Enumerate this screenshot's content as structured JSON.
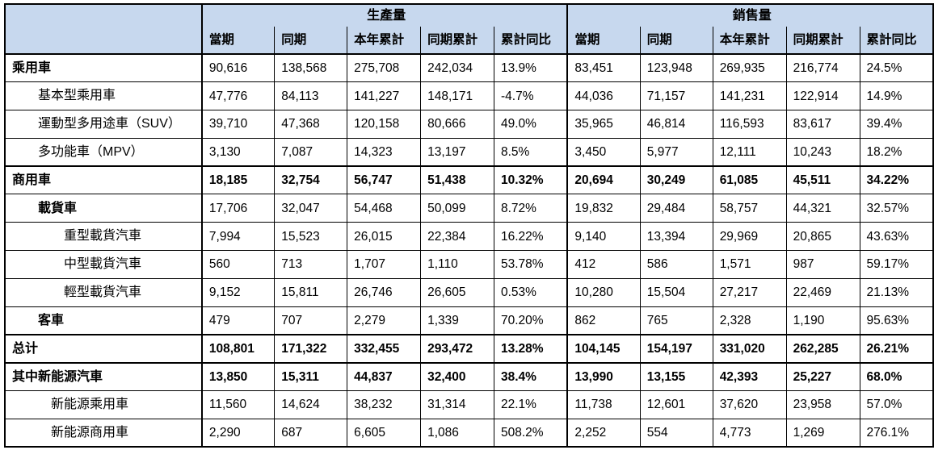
{
  "styles": {
    "header_bg": "#c7d8ee",
    "border_color": "#000000",
    "text_color": "#000000",
    "page_bg": "#ffffff"
  },
  "table": {
    "header": {
      "production_label": "生產量",
      "sales_label": "銷售量",
      "columns": [
        "當期",
        "同期",
        "本年累計",
        "同期累計",
        "累計同比"
      ]
    },
    "rows": [
      {
        "label": "乘用車",
        "indent": 0,
        "bold_label": true,
        "bold_values": false,
        "production": [
          "90,616",
          "138,568",
          "275,708",
          "242,034",
          "13.9%"
        ],
        "sales": [
          "83,451",
          "123,948",
          "269,935",
          "216,774",
          "24.5%"
        ]
      },
      {
        "label": "基本型乘用車",
        "indent": 1,
        "bold_label": false,
        "bold_values": false,
        "production": [
          "47,776",
          "84,113",
          "141,227",
          "148,171",
          "-4.7%"
        ],
        "sales": [
          "44,036",
          "71,157",
          "141,231",
          "122,914",
          "14.9%"
        ]
      },
      {
        "label": "運動型多用途車（SUV）",
        "indent": 1,
        "bold_label": false,
        "bold_values": false,
        "production": [
          "39,710",
          "47,368",
          "120,158",
          "80,666",
          "49.0%"
        ],
        "sales": [
          "35,965",
          "46,814",
          "116,593",
          "83,617",
          "39.4%"
        ]
      },
      {
        "label": "多功能車（MPV）",
        "indent": 1,
        "bold_label": false,
        "bold_values": false,
        "production": [
          "3,130",
          "7,087",
          "14,323",
          "13,197",
          "8.5%"
        ],
        "sales": [
          "3,450",
          "5,977",
          "12,111",
          "10,243",
          "18.2%"
        ]
      },
      {
        "label": "商用車",
        "indent": 0,
        "bold_label": true,
        "bold_values": true,
        "production": [
          "18,185",
          "32,754",
          "56,747",
          "51,438",
          "10.32%"
        ],
        "sales": [
          "20,694",
          "30,249",
          "61,085",
          "45,511",
          "34.22%"
        ]
      },
      {
        "label": "載貨車",
        "indent": 1,
        "bold_label": true,
        "bold_values": false,
        "production": [
          "17,706",
          "32,047",
          "54,468",
          "50,099",
          "8.72%"
        ],
        "sales": [
          "19,832",
          "29,484",
          "58,757",
          "44,321",
          "32.57%"
        ]
      },
      {
        "label": "重型載貨汽車",
        "indent": 2,
        "bold_label": false,
        "bold_values": false,
        "production": [
          "7,994",
          "15,523",
          "26,015",
          "22,384",
          "16.22%"
        ],
        "sales": [
          "9,140",
          "13,394",
          "29,969",
          "20,865",
          "43.63%"
        ]
      },
      {
        "label": "中型載貨汽車",
        "indent": 2,
        "bold_label": false,
        "bold_values": false,
        "production": [
          "560",
          "713",
          "1,707",
          "1,110",
          "53.78%"
        ],
        "sales": [
          "412",
          "586",
          "1,571",
          "987",
          "59.17%"
        ]
      },
      {
        "label": "輕型載貨汽車",
        "indent": 2,
        "bold_label": false,
        "bold_values": false,
        "production": [
          "9,152",
          "15,811",
          "26,746",
          "26,605",
          "0.53%"
        ],
        "sales": [
          "10,280",
          "15,504",
          "27,217",
          "22,469",
          "21.13%"
        ]
      },
      {
        "label": "客車",
        "indent": 1,
        "bold_label": true,
        "bold_values": false,
        "production": [
          "479",
          "707",
          "2,279",
          "1,339",
          "70.20%"
        ],
        "sales": [
          "862",
          "765",
          "2,328",
          "1,190",
          "95.63%"
        ]
      },
      {
        "label": "总计",
        "indent": 0,
        "bold_label": true,
        "bold_values": true,
        "production": [
          "108,801",
          "171,322",
          "332,455",
          "293,472",
          "13.28%"
        ],
        "sales": [
          "104,145",
          "154,197",
          "331,020",
          "262,285",
          "26.21%"
        ]
      },
      {
        "label": "其中新能源汽車",
        "indent": 0,
        "bold_label": true,
        "bold_values": true,
        "production": [
          "13,850",
          "15,311",
          "44,837",
          "32,400",
          "38.4%"
        ],
        "sales": [
          "13,990",
          "13,155",
          "42,393",
          "25,227",
          "68.0%"
        ]
      },
      {
        "label": "新能源乘用車",
        "indent": 1.5,
        "bold_label": false,
        "bold_values": false,
        "production": [
          "11,560",
          "14,624",
          "38,232",
          "31,314",
          "22.1%"
        ],
        "sales": [
          "11,738",
          "12,601",
          "37,620",
          "23,958",
          "57.0%"
        ]
      },
      {
        "label": "新能源商用車",
        "indent": 1.5,
        "bold_label": false,
        "bold_values": false,
        "production": [
          "2,290",
          "687",
          "6,605",
          "1,086",
          "508.2%"
        ],
        "sales": [
          "2,252",
          "554",
          "4,773",
          "1,269",
          "276.1%"
        ]
      }
    ]
  }
}
